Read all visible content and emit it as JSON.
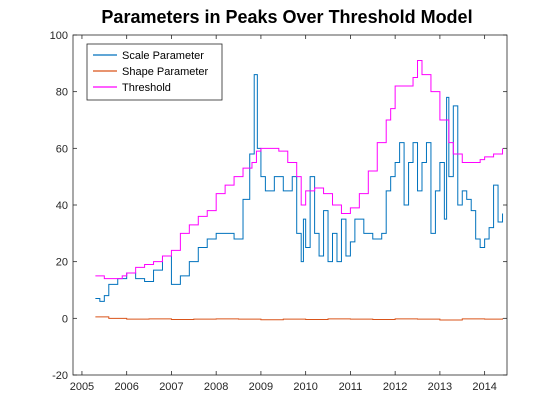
{
  "chart_data": {
    "type": "line",
    "title": "Parameters in Peaks Over Threshold Model",
    "xlabel": "",
    "ylabel": "",
    "xlim": [
      2004.8,
      2014.5
    ],
    "ylim": [
      -20,
      100
    ],
    "x_ticks": [
      2005,
      2006,
      2007,
      2008,
      2009,
      2010,
      2011,
      2012,
      2013,
      2014
    ],
    "x_tick_labels": [
      "2005",
      "2006",
      "2007",
      "2008",
      "2009",
      "2010",
      "2011",
      "2012",
      "2013",
      "2014"
    ],
    "y_ticks": [
      -20,
      0,
      20,
      40,
      60,
      80,
      100
    ],
    "y_tick_labels": [
      "-20",
      "0",
      "20",
      "40",
      "60",
      "80",
      "100"
    ],
    "grid": false,
    "legend_position": "top-left",
    "series": [
      {
        "name": "Scale Parameter",
        "color": "#0072BD",
        "x": [
          2005.3,
          2005.4,
          2005.5,
          2005.6,
          2005.8,
          2006.0,
          2006.2,
          2006.4,
          2006.6,
          2006.8,
          2007.0,
          2007.2,
          2007.4,
          2007.6,
          2007.8,
          2008.0,
          2008.2,
          2008.4,
          2008.6,
          2008.75,
          2008.85,
          2008.92,
          2009.0,
          2009.1,
          2009.3,
          2009.5,
          2009.7,
          2009.8,
          2009.9,
          2009.95,
          2010.0,
          2010.1,
          2010.2,
          2010.3,
          2010.4,
          2010.5,
          2010.6,
          2010.7,
          2010.8,
          2010.9,
          2011.0,
          2011.1,
          2011.3,
          2011.5,
          2011.7,
          2011.8,
          2011.9,
          2012.0,
          2012.1,
          2012.2,
          2012.3,
          2012.4,
          2012.5,
          2012.6,
          2012.7,
          2012.8,
          2012.9,
          2013.0,
          2013.1,
          2013.15,
          2013.2,
          2013.3,
          2013.4,
          2013.5,
          2013.6,
          2013.7,
          2013.8,
          2013.9,
          2014.0,
          2014.1,
          2014.2,
          2014.3,
          2014.4
        ],
        "y": [
          7,
          6,
          8,
          12,
          14,
          16,
          14,
          13,
          17,
          22,
          12,
          15,
          20,
          25,
          28,
          30,
          30,
          28,
          42,
          58,
          86,
          60,
          50,
          45,
          50,
          45,
          50,
          30,
          20,
          35,
          25,
          50,
          30,
          22,
          38,
          20,
          30,
          20,
          35,
          22,
          27,
          35,
          30,
          28,
          30,
          45,
          50,
          55,
          62,
          40,
          55,
          62,
          45,
          55,
          62,
          30,
          45,
          55,
          35,
          78,
          50,
          75,
          40,
          45,
          42,
          38,
          28,
          25,
          28,
          32,
          47,
          34,
          37
        ]
      },
      {
        "name": "Shape Parameter",
        "color": "#D95319",
        "x": [
          2005.3,
          2005.6,
          2006.0,
          2006.5,
          2007.0,
          2007.5,
          2008.0,
          2008.5,
          2009.0,
          2009.5,
          2010.0,
          2010.5,
          2011.0,
          2011.5,
          2012.0,
          2012.5,
          2013.0,
          2013.5,
          2014.0,
          2014.4
        ],
        "y": [
          0.5,
          0.0,
          -0.3,
          -0.2,
          -0.4,
          -0.3,
          -0.2,
          -0.3,
          -0.5,
          -0.3,
          -0.4,
          -0.2,
          -0.3,
          -0.4,
          -0.2,
          -0.3,
          -0.6,
          -0.2,
          -0.3,
          0.0
        ]
      },
      {
        "name": "Threshold",
        "color": "#FF00FF",
        "x": [
          2005.3,
          2005.5,
          2005.7,
          2005.9,
          2006.0,
          2006.2,
          2006.4,
          2006.6,
          2006.8,
          2007.0,
          2007.2,
          2007.4,
          2007.6,
          2007.8,
          2008.0,
          2008.2,
          2008.4,
          2008.6,
          2008.8,
          2008.9,
          2009.0,
          2009.2,
          2009.4,
          2009.6,
          2009.8,
          2009.9,
          2010.0,
          2010.2,
          2010.4,
          2010.6,
          2010.8,
          2011.0,
          2011.2,
          2011.4,
          2011.6,
          2011.8,
          2011.9,
          2012.0,
          2012.2,
          2012.4,
          2012.5,
          2012.6,
          2012.8,
          2013.0,
          2013.2,
          2013.3,
          2013.5,
          2013.7,
          2013.9,
          2014.0,
          2014.2,
          2014.4
        ],
        "y": [
          15,
          14,
          14,
          15,
          16,
          18,
          19,
          20,
          22,
          24,
          30,
          33,
          36,
          38,
          44,
          47,
          50,
          53,
          55,
          59,
          60,
          60,
          59,
          55,
          50,
          40,
          45,
          46,
          44,
          40,
          37,
          39,
          44,
          52,
          62,
          70,
          74,
          82,
          82,
          85,
          91,
          86,
          80,
          70,
          62,
          58,
          55,
          55,
          56,
          57,
          58,
          60
        ]
      }
    ]
  }
}
